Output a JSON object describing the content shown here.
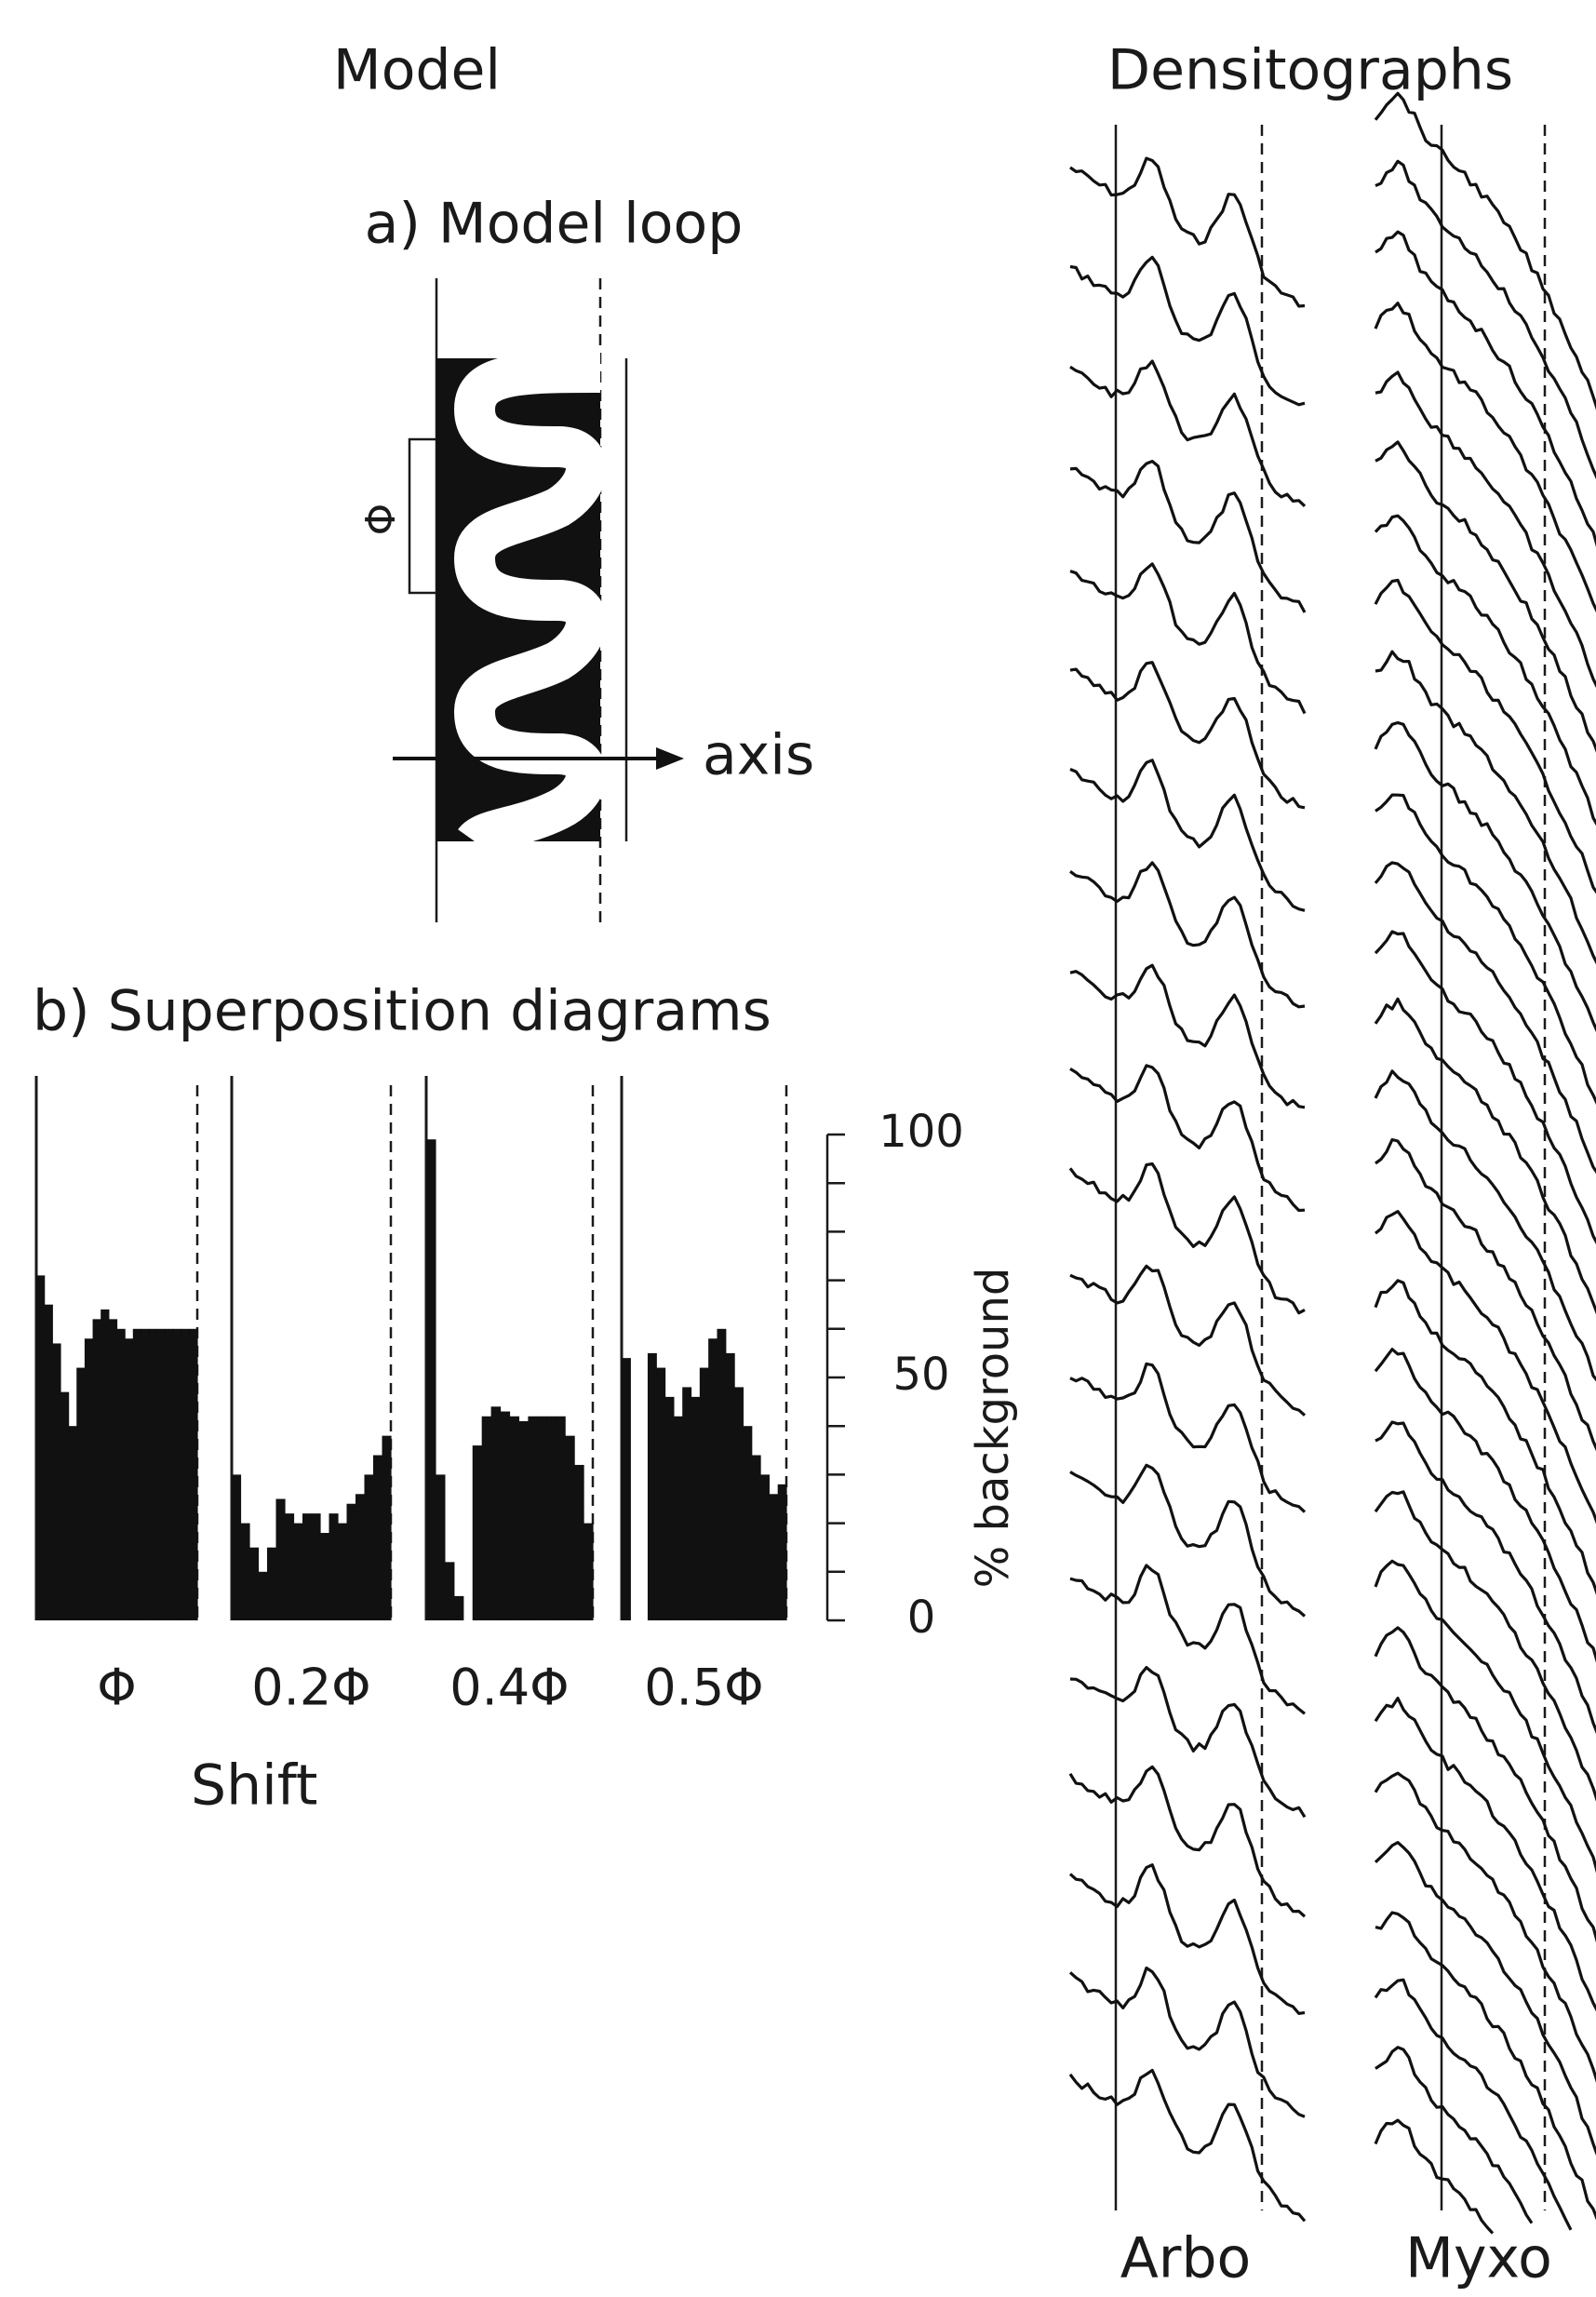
{
  "headers": {
    "model": "Model",
    "densitographs": "Densitographs"
  },
  "model_loop": {
    "title": "a) Model loop",
    "axis_label": "axis",
    "period_symbol": "Φ"
  },
  "superposition": {
    "title": "b) Superposition diagrams",
    "ylabel": "% background",
    "ylim": [
      0,
      100
    ],
    "yticks": [
      0,
      50,
      100
    ],
    "minor_ticks": [
      0,
      10,
      20,
      30,
      40,
      50,
      60,
      70,
      80,
      90,
      100
    ],
    "xlabel": "Shift",
    "panels": [
      {
        "label": "Φ",
        "values": [
          71,
          65,
          57,
          47,
          40,
          52,
          58,
          62,
          64,
          62,
          60,
          58,
          60,
          60,
          60,
          60,
          60,
          60,
          60,
          60
        ]
      },
      {
        "label": "0.2Φ",
        "values": [
          30,
          20,
          15,
          10,
          15,
          25,
          22,
          20,
          22,
          22,
          18,
          22,
          20,
          24,
          26,
          30,
          34,
          38
        ]
      },
      {
        "label": "0.4Φ",
        "values": [
          99,
          30,
          12,
          5,
          0,
          36,
          42,
          44,
          43,
          42,
          41,
          42,
          42,
          42,
          42,
          38,
          32,
          20
        ]
      },
      {
        "label": "0.5Φ",
        "values": [
          54,
          0,
          0,
          55,
          52,
          46,
          42,
          48,
          46,
          52,
          58,
          60,
          55,
          48,
          40,
          34,
          30,
          26,
          28
        ]
      }
    ]
  },
  "densitographs": {
    "columns": [
      "Arbo",
      "Myxo"
    ]
  }
}
